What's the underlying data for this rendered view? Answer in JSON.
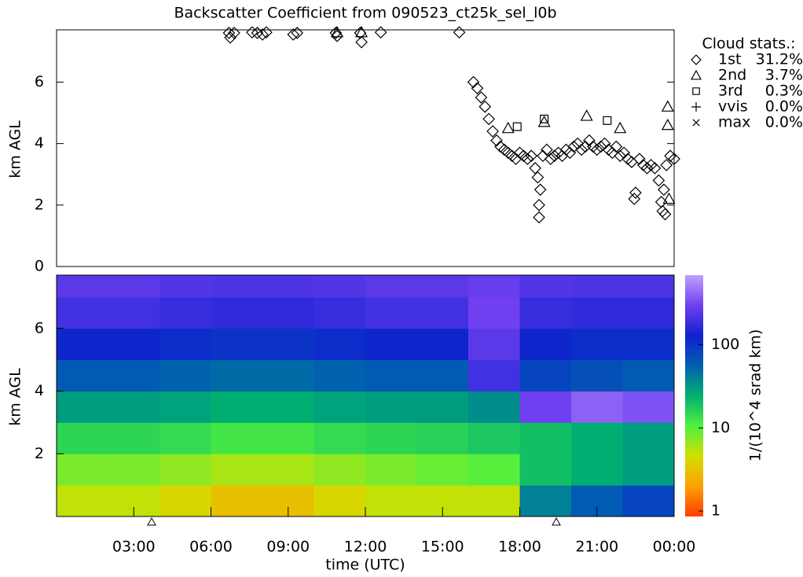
{
  "chart_data": [
    {
      "type": "scatter",
      "title": "Backscatter Coefficient from 090523_ct25k_sel_l0b",
      "ylabel": "km AGL",
      "xlim": [
        0,
        24
      ],
      "ylim": [
        0,
        7.7
      ],
      "yticks": [
        0,
        2,
        4,
        6
      ],
      "legend_title": "Cloud stats.:",
      "series": [
        {
          "name": "1st",
          "marker": "diamond",
          "color": "#000000",
          "stat": {
            "value": 31.2,
            "label": "31.2%"
          },
          "x": [
            6.7,
            6.75,
            6.9,
            7.6,
            7.8,
            8.0,
            8.15,
            9.2,
            9.35,
            10.85,
            10.9,
            11.8,
            11.85,
            12.6,
            15.65,
            16.2,
            16.35,
            16.5,
            16.65,
            16.8,
            16.95,
            17.1,
            17.25,
            17.4,
            17.55,
            17.7,
            17.85,
            18.0,
            18.15,
            18.3,
            18.45,
            18.6,
            18.75,
            18.9,
            19.05,
            19.2,
            19.35,
            19.5,
            19.65,
            19.8,
            19.95,
            20.1,
            20.25,
            20.4,
            20.55,
            20.7,
            20.85,
            21.0,
            21.15,
            21.3,
            21.45,
            21.6,
            21.75,
            21.9,
            22.05,
            22.2,
            22.35,
            22.5,
            22.65,
            22.8,
            22.95,
            23.1,
            23.25,
            23.4,
            23.55,
            23.7,
            23.85,
            24.0,
            18.75,
            18.8,
            18.7,
            22.45,
            23.5,
            23.6,
            23.65
          ],
          "values": [
            7.6,
            7.45,
            7.6,
            7.62,
            7.6,
            7.55,
            7.62,
            7.55,
            7.6,
            7.6,
            7.5,
            7.6,
            7.3,
            7.62,
            7.62,
            6.0,
            5.8,
            5.5,
            5.2,
            4.8,
            4.4,
            4.1,
            3.9,
            3.8,
            3.7,
            3.6,
            3.5,
            3.7,
            3.6,
            3.5,
            3.6,
            3.2,
            2.0,
            3.6,
            3.8,
            3.5,
            3.6,
            3.7,
            3.6,
            3.8,
            3.7,
            3.9,
            4.0,
            3.8,
            3.9,
            4.1,
            3.9,
            3.8,
            3.9,
            4.0,
            3.8,
            3.7,
            3.9,
            3.6,
            3.7,
            3.5,
            3.4,
            2.4,
            3.5,
            3.3,
            3.2,
            3.3,
            3.2,
            2.8,
            1.8,
            3.3,
            3.6,
            3.5,
            1.6,
            2.5,
            2.9,
            2.2,
            2.1,
            2.5,
            1.7
          ]
        },
        {
          "name": "2nd",
          "marker": "triangle",
          "color": "#000000",
          "stat": {
            "value": 3.7,
            "label": "3.7%"
          },
          "x": [
            10.9,
            11.85,
            17.55,
            18.95,
            20.6,
            21.9,
            23.75,
            23.75,
            23.8
          ],
          "values": [
            7.62,
            7.62,
            4.5,
            4.7,
            4.9,
            4.5,
            5.2,
            4.6,
            2.2
          ]
        },
        {
          "name": "3rd",
          "marker": "square",
          "color": "#000000",
          "stat": {
            "value": 0.3,
            "label": "0.3%"
          },
          "x": [
            17.9,
            18.95,
            21.4
          ],
          "values": [
            4.55,
            4.8,
            4.75
          ]
        },
        {
          "name": "vvis",
          "marker": "plus",
          "color": "#000000",
          "stat": {
            "value": 0.0,
            "label": "0.0%"
          },
          "x": [],
          "values": []
        },
        {
          "name": "max",
          "marker": "cross",
          "color": "#000000",
          "stat": {
            "value": 0.0,
            "label": "0.0%"
          },
          "x": [],
          "values": []
        }
      ]
    },
    {
      "type": "heatmap",
      "ylabel": "km AGL",
      "xlabel": "time (UTC)",
      "xlim": [
        0,
        24
      ],
      "ylim": [
        0,
        7.7
      ],
      "yticks": [
        2,
        4,
        6
      ],
      "xticks": [
        {
          "value": 3,
          "label": "03:00"
        },
        {
          "value": 6,
          "label": "06:00"
        },
        {
          "value": 9,
          "label": "09:00"
        },
        {
          "value": 12,
          "label": "12:00"
        },
        {
          "value": 15,
          "label": "15:00"
        },
        {
          "value": 18,
          "label": "18:00"
        },
        {
          "value": 21,
          "label": "21:00"
        },
        {
          "value": 24,
          "label": "00:00"
        }
      ],
      "x_bins": [
        0,
        2,
        4,
        6,
        8,
        10,
        12,
        14,
        16,
        18,
        20,
        22,
        24
      ],
      "y_bins": [
        0,
        1,
        2,
        3,
        4,
        5,
        6,
        7,
        7.7
      ],
      "z": [
        [
          5,
          5,
          4,
          3,
          3,
          4,
          5,
          5,
          5,
          40,
          60,
          80
        ],
        [
          8,
          8,
          7,
          6,
          6,
          7,
          8,
          9,
          10,
          20,
          25,
          30
        ],
        [
          15,
          15,
          14,
          12,
          12,
          14,
          15,
          16,
          18,
          20,
          25,
          30
        ],
        [
          30,
          30,
          28,
          25,
          25,
          28,
          30,
          30,
          35,
          300,
          400,
          350
        ],
        [
          60,
          60,
          55,
          50,
          50,
          55,
          60,
          60,
          200,
          80,
          70,
          60
        ],
        [
          120,
          120,
          110,
          100,
          100,
          110,
          120,
          120,
          250,
          120,
          110,
          110
        ],
        [
          200,
          200,
          180,
          170,
          170,
          180,
          200,
          200,
          300,
          180,
          170,
          170
        ],
        [
          250,
          250,
          230,
          220,
          220,
          230,
          250,
          250,
          280,
          230,
          220,
          220
        ]
      ],
      "colorbar_label": "1/(10^4 srad km)",
      "clim": [
        0.86,
        690
      ],
      "log_color": true,
      "cticks": [
        1,
        10,
        100
      ],
      "colormap": [
        "#ff3c00",
        "#ffa000",
        "#d0e000",
        "#50f040",
        "#00b070",
        "#0060b0",
        "#1020d0",
        "#7040f0",
        "#c0a0ff"
      ]
    }
  ]
}
